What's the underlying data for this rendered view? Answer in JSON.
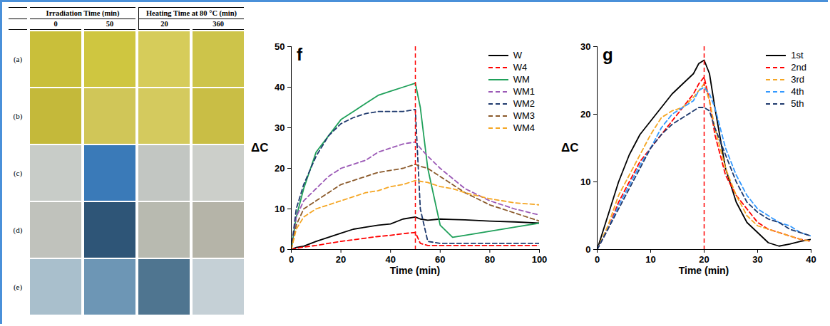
{
  "table": {
    "header": {
      "groups": [
        {
          "label": "Irradiation Time (min)",
          "columns": [
            "0",
            "50"
          ]
        },
        {
          "label": "Heating Time at 80 °C (min)",
          "columns": [
            "20",
            "360"
          ]
        }
      ]
    },
    "rows": [
      {
        "label": "(a)",
        "colors": [
          "#c9bf3a",
          "#cfc640",
          "#d6cc5a",
          "#cdc44a"
        ]
      },
      {
        "label": "(b)",
        "colors": [
          "#c4b93a",
          "#d0c658",
          "#d4ca5e",
          "#c9be45"
        ]
      },
      {
        "label": "(c)",
        "colors": [
          "#c8ccc8",
          "#3a7ab8",
          "#c2c6c2",
          "#cccfca"
        ]
      },
      {
        "label": "(d)",
        "colors": [
          "#c0c2bc",
          "#2e5577",
          "#b8bab0",
          "#b5b4a8"
        ]
      },
      {
        "label": "(e)",
        "colors": [
          "#a9bfcc",
          "#6d96b5",
          "#4f7590",
          "#c5d0d6"
        ]
      }
    ]
  },
  "chart_data": [
    {
      "type": "line",
      "panel_label": "f",
      "x": [
        0,
        2,
        5,
        10,
        15,
        20,
        25,
        30,
        35,
        40,
        45,
        50,
        52,
        55,
        60,
        65,
        70,
        80,
        90,
        100
      ],
      "xlim": [
        0,
        100
      ],
      "xticks": [
        0,
        20,
        40,
        60,
        80,
        100
      ],
      "ylim": [
        0,
        50
      ],
      "yticks": [
        0,
        10,
        20,
        30,
        40,
        50
      ],
      "x_label": "Time (min)",
      "y_label": "ΔC",
      "legend": "top-right",
      "reference_line": {
        "x": 50,
        "color": "#ff0000",
        "line_style": "dashed"
      },
      "series": [
        {
          "name": "W",
          "color": "#000000",
          "line_style": "solid",
          "values": [
            0,
            0.5,
            0.8,
            2,
            3,
            4,
            5,
            5.5,
            6,
            6.3,
            7.5,
            8,
            7.5,
            7.2,
            7.5,
            7.4,
            7.3,
            7,
            6.8,
            6.5
          ]
        },
        {
          "name": "W4",
          "color": "#ff0000",
          "line_style": "dashed",
          "values": [
            0,
            0.3,
            0.6,
            1,
            1.5,
            2,
            2.4,
            2.8,
            3.2,
            3.5,
            3.9,
            4.2,
            1.5,
            1,
            1,
            1,
            1,
            1,
            1,
            1
          ]
        },
        {
          "name": "WM",
          "color": "#1fa05a",
          "line_style": "solid",
          "values": [
            0,
            8,
            15,
            24,
            28,
            32,
            34,
            36,
            38,
            39,
            40,
            41,
            35,
            20,
            6,
            3,
            3.5,
            4.5,
            5.5,
            6.5
          ]
        },
        {
          "name": "WM1",
          "color": "#9b59b6",
          "line_style": "dashed",
          "values": [
            0,
            8,
            12,
            15,
            18,
            20,
            21,
            22,
            24,
            25,
            26,
            26.5,
            25,
            23,
            20,
            17.5,
            15,
            12,
            10,
            8.5
          ]
        },
        {
          "name": "WM2",
          "color": "#1f3a6e",
          "line_style": "dashed",
          "values": [
            0,
            10,
            16,
            23,
            28,
            31,
            32.5,
            33.5,
            34,
            34,
            34,
            34.5,
            10,
            2,
            1.5,
            1.5,
            1.5,
            1.5,
            1.5,
            1.5
          ]
        },
        {
          "name": "WM3",
          "color": "#8b5a2b",
          "line_style": "dashed",
          "values": [
            0,
            6,
            10,
            12,
            14,
            16,
            17,
            18,
            19,
            19.5,
            20,
            21,
            20.5,
            20,
            18,
            16,
            14,
            11,
            9,
            7
          ]
        },
        {
          "name": "WM4",
          "color": "#f5a623",
          "line_style": "dashed",
          "values": [
            0,
            5,
            8,
            10,
            11,
            12,
            13,
            14,
            14.5,
            15.5,
            16,
            17,
            16.8,
            16.5,
            15.5,
            15,
            14,
            12.5,
            11.5,
            11
          ]
        }
      ]
    },
    {
      "type": "line",
      "panel_label": "g",
      "x": [
        0,
        2,
        4,
        6,
        8,
        10,
        12,
        14,
        16,
        18,
        19,
        20,
        21,
        22,
        24,
        26,
        28,
        30,
        32,
        34,
        36,
        38,
        40
      ],
      "xlim": [
        0,
        40
      ],
      "xticks": [
        0,
        10,
        20,
        30,
        40
      ],
      "ylim": [
        0,
        30
      ],
      "yticks": [
        0,
        10,
        20,
        30
      ],
      "x_label": "Time (min)",
      "y_label": "ΔC",
      "legend": "top-right",
      "reference_line": {
        "x": 20,
        "color": "#ff0000",
        "line_style": "dashed"
      },
      "series": [
        {
          "name": "1st",
          "color": "#000000",
          "line_style": "solid",
          "values": [
            0,
            5,
            10,
            14,
            17,
            19,
            21,
            23,
            24.5,
            26,
            27.5,
            28,
            26,
            21,
            12,
            7,
            4,
            2.5,
            1,
            0.5,
            0.8,
            1.2,
            1.5
          ]
        },
        {
          "name": "2nd",
          "color": "#ff0000",
          "line_style": "dashed",
          "values": [
            0,
            3,
            7,
            10,
            13,
            15,
            17,
            19,
            21,
            23,
            24.5,
            25.5,
            22,
            17,
            11,
            8,
            6,
            4,
            3,
            2.5,
            2,
            1.5,
            1.2
          ]
        },
        {
          "name": "3rd",
          "color": "#f5a623",
          "line_style": "dashed",
          "values": [
            0,
            3.5,
            8,
            11,
            14,
            17,
            19.5,
            20.5,
            21,
            22.5,
            23.5,
            24.5,
            22,
            18,
            12,
            8,
            5,
            3.5,
            3,
            2.5,
            2,
            1.5,
            1.2
          ]
        },
        {
          "name": "4th",
          "color": "#3399ff",
          "line_style": "dashed",
          "values": [
            0,
            3,
            6.5,
            9.5,
            12.5,
            15,
            18,
            20,
            21,
            22,
            23.5,
            24,
            23,
            21,
            15,
            11,
            8,
            6,
            5,
            4,
            3.5,
            2.5,
            2
          ]
        },
        {
          "name": "5th",
          "color": "#1f3a6e",
          "line_style": "dashed",
          "values": [
            0,
            3,
            6,
            9,
            12,
            15,
            17,
            18.5,
            19.5,
            20.5,
            21,
            21,
            20.5,
            18,
            14,
            10,
            7,
            5.5,
            4.5,
            4,
            3,
            2.5,
            2
          ]
        }
      ]
    }
  ]
}
